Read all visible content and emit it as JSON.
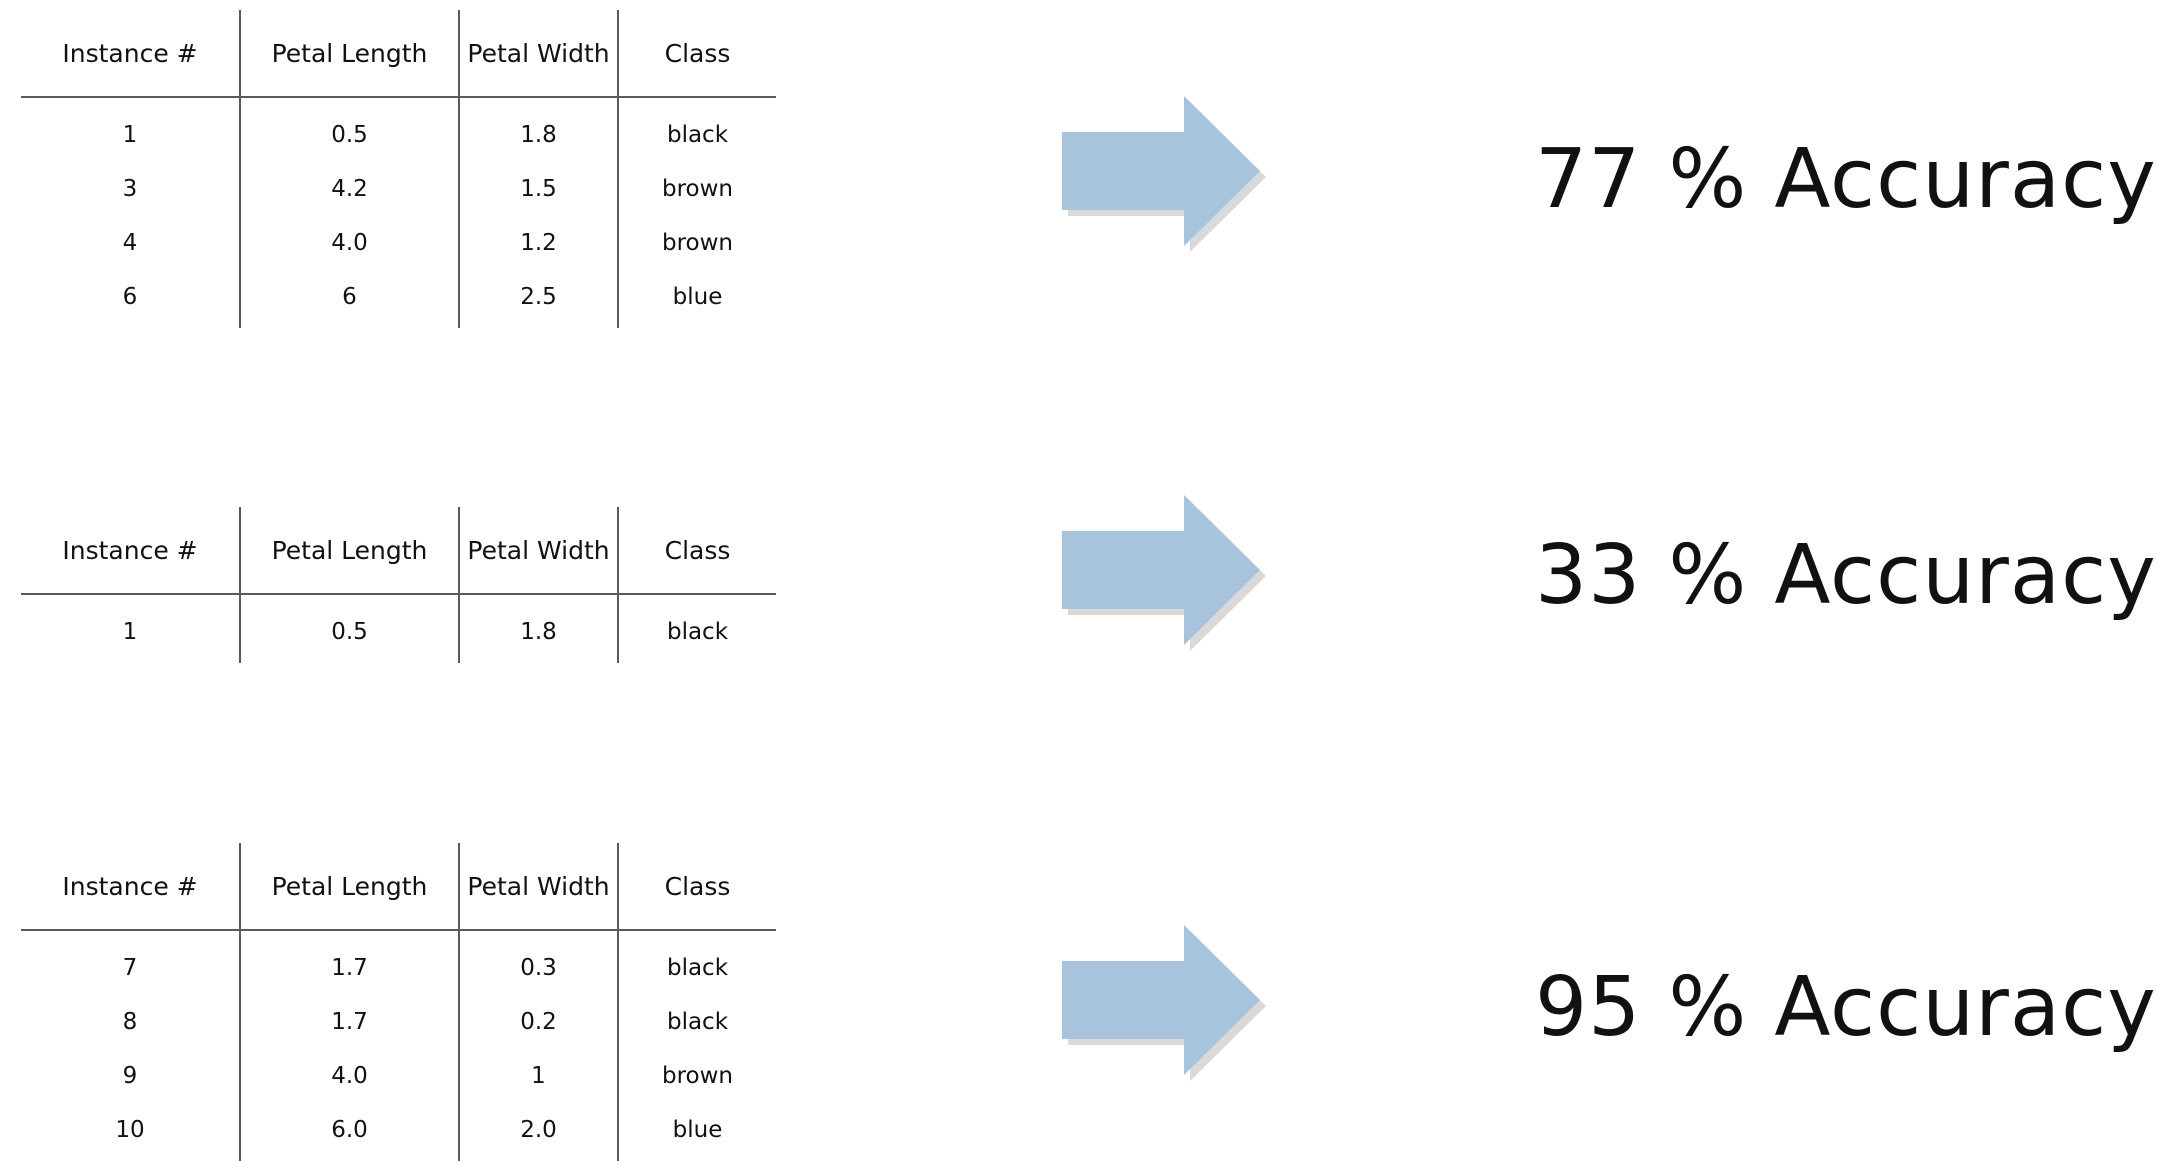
{
  "table_headers": [
    "Instance #",
    "Petal Length",
    "Petal Width",
    "Class"
  ],
  "blocks": [
    {
      "rows": [
        [
          "1",
          "0.5",
          "1.8",
          "black"
        ],
        [
          "3",
          "4.2",
          "1.5",
          "brown"
        ],
        [
          "4",
          "4.0",
          "1.2",
          "brown"
        ],
        [
          "6",
          "6",
          "2.5",
          "blue"
        ]
      ],
      "accuracy_label": "77 % Accuracy"
    },
    {
      "rows": [
        [
          "1",
          "0.5",
          "1.8",
          "black"
        ]
      ],
      "accuracy_label": "33 % Accuracy"
    },
    {
      "rows": [
        [
          "7",
          "1.7",
          "0.3",
          "black"
        ],
        [
          "8",
          "1.7",
          "0.2",
          "black"
        ],
        [
          "9",
          "4.0",
          "1",
          "brown"
        ],
        [
          "10",
          "6.0",
          "2.0",
          "blue"
        ]
      ],
      "accuracy_label": "95 % Accuracy"
    }
  ],
  "colors": {
    "arrow_fill": "#a7c4dc",
    "arrow_shadow": "#c9c9c9",
    "rule_lines": "#5a5a5a",
    "text": "#111111"
  }
}
